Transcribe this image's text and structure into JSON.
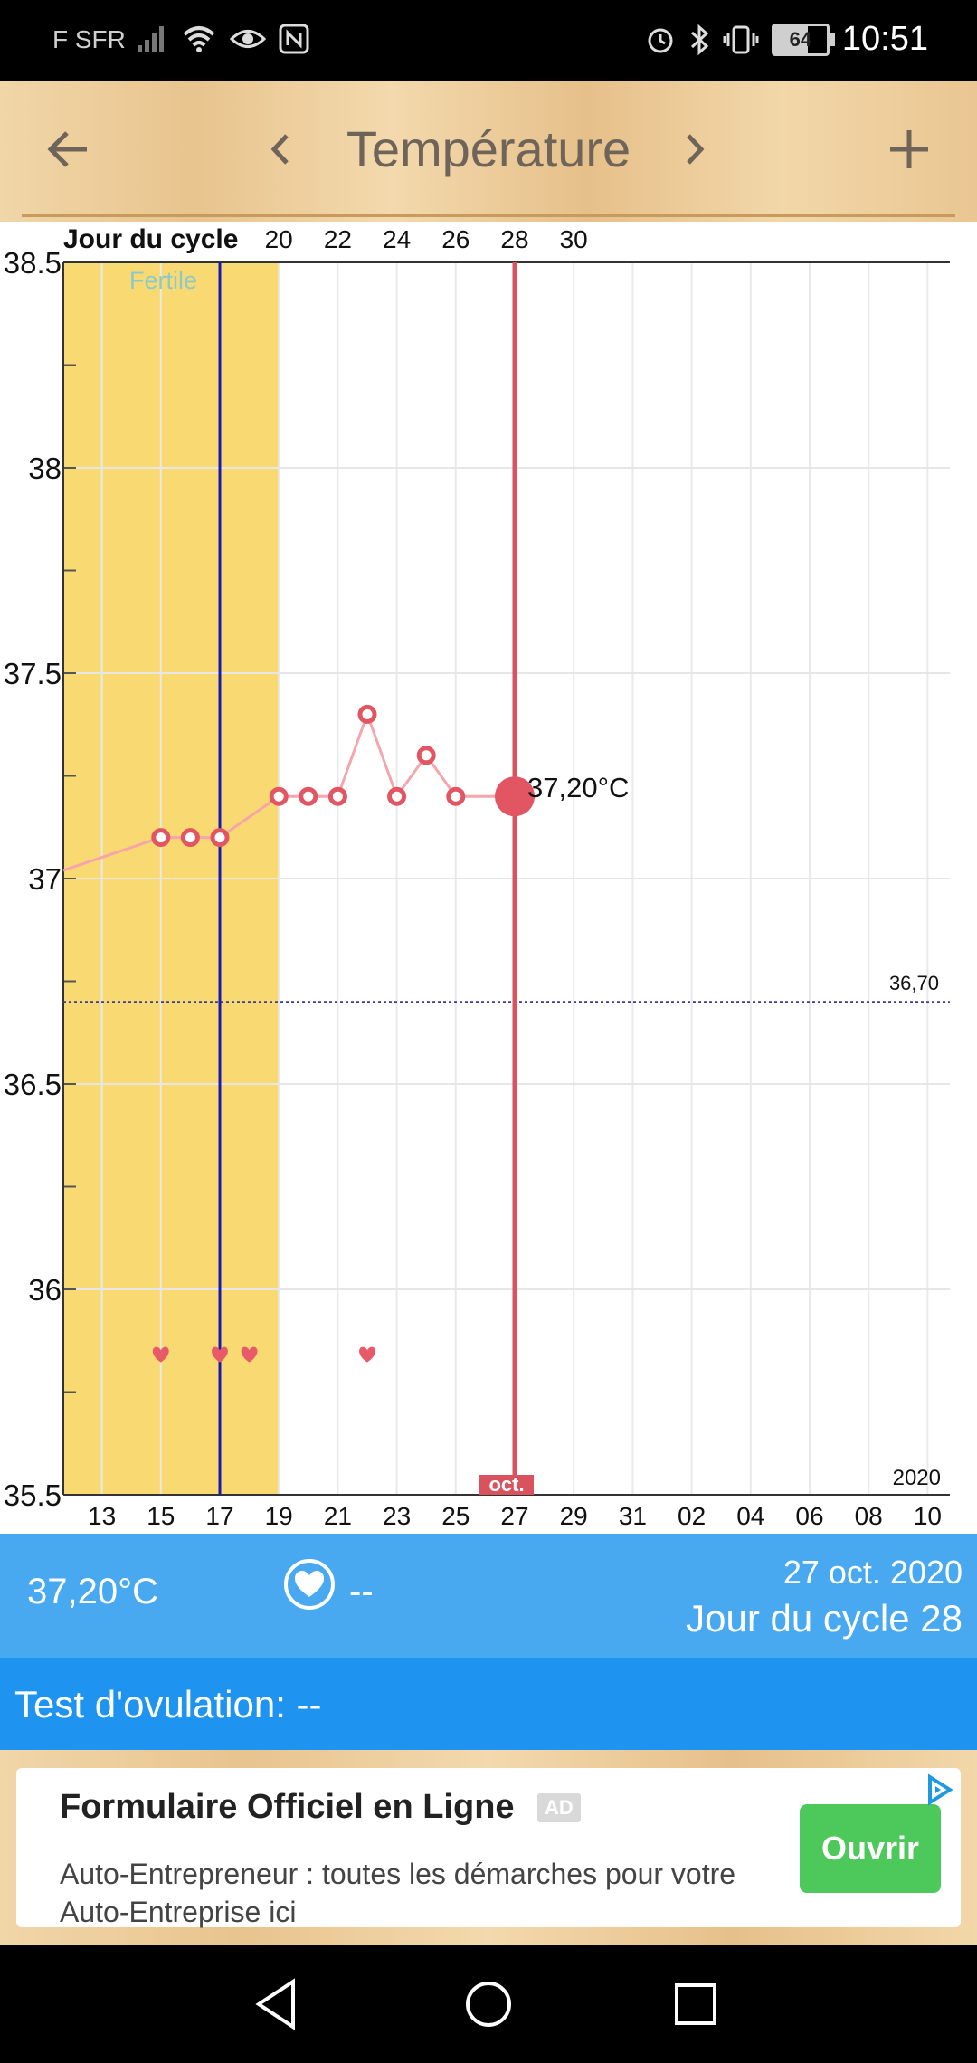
{
  "status_bar": {
    "carrier": "F SFR",
    "battery": "64",
    "time": "10:51",
    "icons": [
      "signal-icon",
      "wifi-icon",
      "eye-icon",
      "nfc-icon",
      "alarm-icon",
      "bluetooth-icon",
      "vibrate-icon",
      "battery-icon"
    ]
  },
  "header": {
    "title": "Température",
    "back_icon": "arrow-left-icon",
    "prev_icon": "chevron-left-icon",
    "next_icon": "chevron-right-icon",
    "add_icon": "plus-icon"
  },
  "chart": {
    "top_axis_label": "Jour du cycle",
    "fertile_label": "Fertile",
    "selected_label": "37,20°C",
    "threshold_label": "36,70",
    "month_label": "oct.",
    "year_label": "2020",
    "colors": {
      "fertile": "#f9da72",
      "line": "#f5a5ab",
      "point": "#e25562",
      "selected_line": "#d9535f",
      "ovulation_line": "#1a1ab0",
      "threshold": "#3a3aa0",
      "heart": "#e85a68"
    }
  },
  "chart_data": {
    "type": "line",
    "title": "Température",
    "xlabel": "",
    "ylabel": "",
    "ylim": [
      35.5,
      38.5
    ],
    "y_ticks": [
      "38.5",
      "38",
      "37.5",
      "37",
      "36.5",
      "36",
      "35.5"
    ],
    "x_ticks_bottom": [
      "13",
      "15",
      "17",
      "19",
      "21",
      "23",
      "25",
      "27",
      "29",
      "31",
      "02",
      "04",
      "06",
      "08",
      "10"
    ],
    "x_ticks_top": [
      "20",
      "22",
      "24",
      "26",
      "28",
      "30"
    ],
    "date_range": [
      "2020-10-12",
      "2020-11-10"
    ],
    "fertile_range": [
      "2020-10-12",
      "2020-10-19"
    ],
    "ovulation_date": "2020-10-17",
    "selected_date": "2020-10-27",
    "threshold": 36.7,
    "series": [
      {
        "x": [
          "2020-10-12",
          "2020-10-15",
          "2020-10-16",
          "2020-10-17",
          "2020-10-19",
          "2020-10-20",
          "2020-10-21",
          "2020-10-22",
          "2020-10-23",
          "2020-10-24",
          "2020-10-25",
          "2020-10-27"
        ],
        "y": [
          37.02,
          37.1,
          37.1,
          37.1,
          37.2,
          37.2,
          37.2,
          37.4,
          37.2,
          37.3,
          37.2,
          37.2
        ]
      }
    ],
    "heart_dates": [
      "2020-10-15",
      "2020-10-17",
      "2020-10-18",
      "2020-10-22"
    ]
  },
  "info": {
    "temperature": "37,20°C",
    "heart_icon": "heart-icon",
    "heart_value": "--",
    "date": "27 oct. 2020",
    "cycle_day": "Jour du cycle 28"
  },
  "ovulation": {
    "label": "Test d'ovulation: --"
  },
  "ad": {
    "title": "Formulaire Officiel en Ligne",
    "badge": "AD",
    "description": "Auto-Entrepreneur : toutes les démarches pour votre Auto-Entreprise ici",
    "button": "Ouvrir",
    "choice_icon": "ad-choices-icon"
  },
  "navbar": {
    "icons": [
      "back-triangle-icon",
      "home-circle-icon",
      "recents-square-icon"
    ]
  }
}
